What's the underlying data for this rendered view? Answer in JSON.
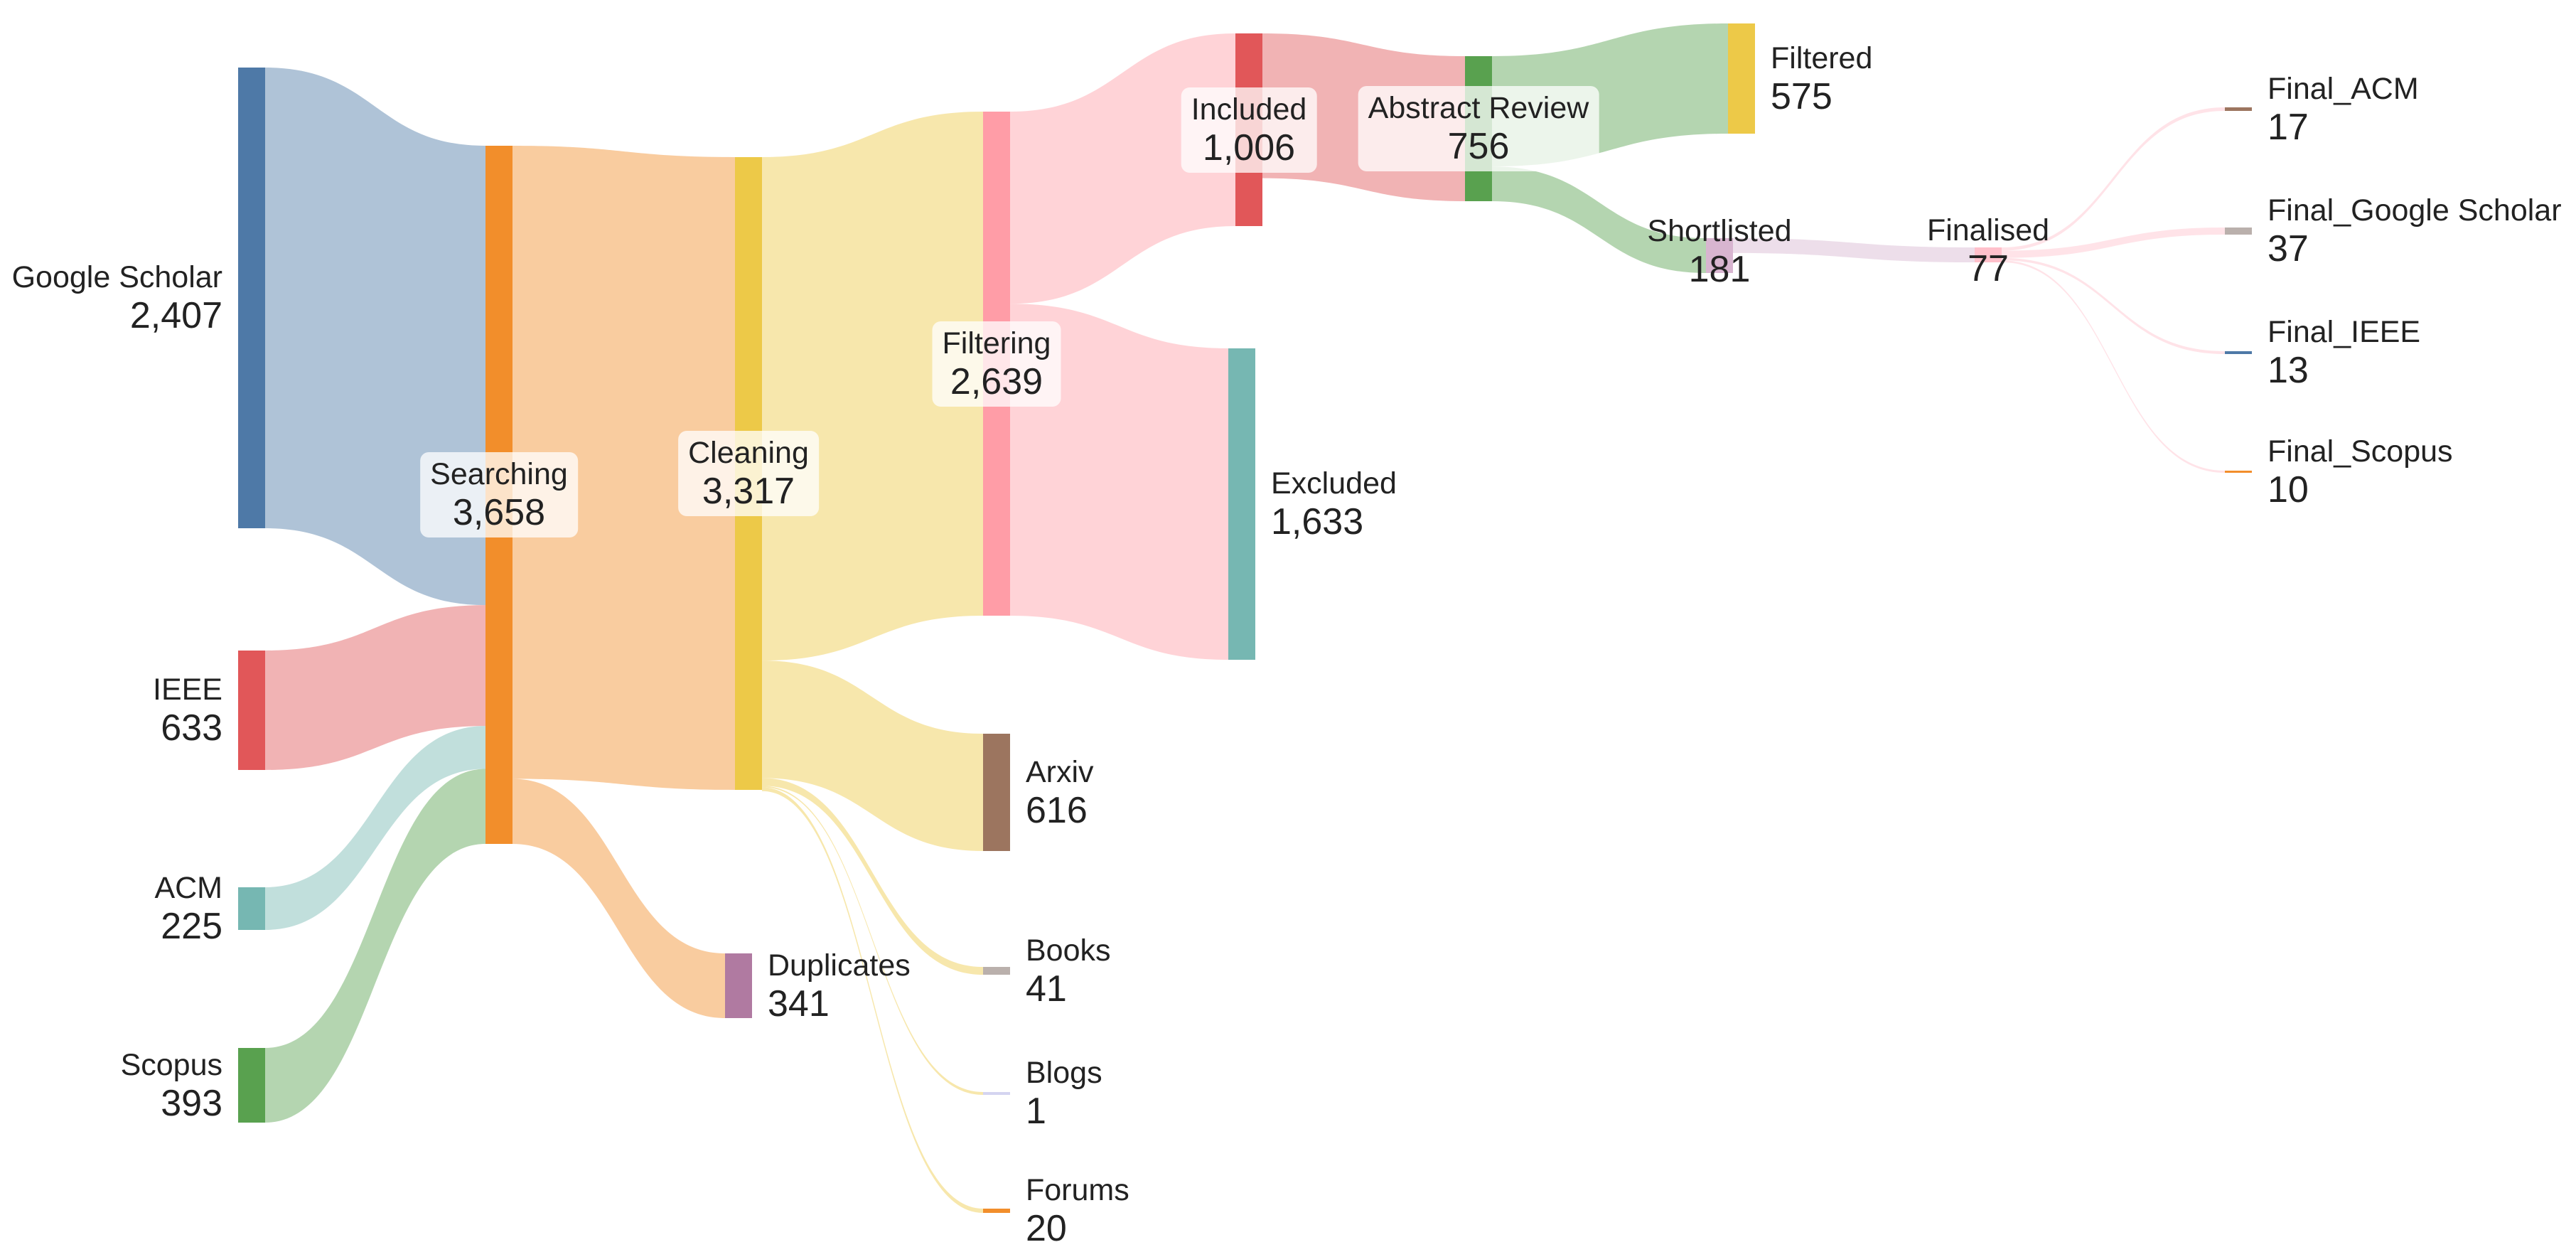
{
  "diagram": {
    "type": "sankey",
    "nodes": [
      {
        "id": "gs",
        "name": "Google Scholar",
        "count": "2,407",
        "value": 2407,
        "color": "#4e79a7"
      },
      {
        "id": "ieee",
        "name": "IEEE",
        "count": "633",
        "value": 633,
        "color": "#e15759"
      },
      {
        "id": "acm",
        "name": "ACM",
        "count": "225",
        "value": 225,
        "color": "#76b7b2"
      },
      {
        "id": "scopus",
        "name": "Scopus",
        "count": "393",
        "value": 393,
        "color": "#59a14f"
      },
      {
        "id": "searching",
        "name": "Searching",
        "count": "3,658",
        "value": 3658,
        "color": "#f28e2b"
      },
      {
        "id": "cleaning",
        "name": "Cleaning",
        "count": "3,317",
        "value": 3317,
        "color": "#edc948"
      },
      {
        "id": "duplicates",
        "name": "Duplicates",
        "count": "341",
        "value": 341,
        "color": "#b07aa1"
      },
      {
        "id": "filtering",
        "name": "Filtering",
        "count": "2,639",
        "value": 2639,
        "color": "#ff9da7"
      },
      {
        "id": "arxiv",
        "name": "Arxiv",
        "count": "616",
        "value": 616,
        "color": "#9c755f"
      },
      {
        "id": "books",
        "name": "Books",
        "count": "41",
        "value": 41,
        "color": "#bab0ac"
      },
      {
        "id": "blogs",
        "name": "Blogs",
        "count": "1",
        "value": 1,
        "color": "#d4d4f0"
      },
      {
        "id": "forums",
        "name": "Forums",
        "count": "20",
        "value": 20,
        "color": "#f28e2b"
      },
      {
        "id": "included",
        "name": "Included",
        "count": "1,006",
        "value": 1006,
        "color": "#e15759"
      },
      {
        "id": "excluded",
        "name": "Excluded",
        "count": "1,633",
        "value": 1633,
        "color": "#76b7b2"
      },
      {
        "id": "abstract",
        "name": "Abstract Review",
        "count": "756",
        "value": 756,
        "color": "#59a14f"
      },
      {
        "id": "filtered",
        "name": "Filtered",
        "count": "575",
        "value": 575,
        "color": "#edc948"
      },
      {
        "id": "shortlisted",
        "name": "Shortlisted",
        "count": "181",
        "value": 181,
        "color": "#d8b5d0"
      },
      {
        "id": "finalised",
        "name": "Finalised",
        "count": "77",
        "value": 77,
        "color": "#ffc0cb"
      },
      {
        "id": "final_acm",
        "name": "Final_ACM",
        "count": "17",
        "value": 17,
        "color": "#9c755f"
      },
      {
        "id": "final_gs",
        "name": "Final_Google Scholar",
        "count": "37",
        "value": 37,
        "color": "#bab0ac"
      },
      {
        "id": "final_ieee",
        "name": "Final_IEEE",
        "count": "13",
        "value": 13,
        "color": "#4e79a7"
      },
      {
        "id": "final_scopus",
        "name": "Final_Scopus",
        "count": "10",
        "value": 10,
        "color": "#f28e2b"
      }
    ],
    "links": [
      {
        "source": "gs",
        "target": "searching",
        "value": 2407
      },
      {
        "source": "ieee",
        "target": "searching",
        "value": 633
      },
      {
        "source": "acm",
        "target": "searching",
        "value": 225
      },
      {
        "source": "scopus",
        "target": "searching",
        "value": 393
      },
      {
        "source": "searching",
        "target": "cleaning",
        "value": 3317
      },
      {
        "source": "searching",
        "target": "duplicates",
        "value": 341
      },
      {
        "source": "cleaning",
        "target": "filtering",
        "value": 2639
      },
      {
        "source": "cleaning",
        "target": "arxiv",
        "value": 616
      },
      {
        "source": "cleaning",
        "target": "books",
        "value": 41
      },
      {
        "source": "cleaning",
        "target": "blogs",
        "value": 1
      },
      {
        "source": "cleaning",
        "target": "forums",
        "value": 20
      },
      {
        "source": "filtering",
        "target": "included",
        "value": 1006
      },
      {
        "source": "filtering",
        "target": "excluded",
        "value": 1633
      },
      {
        "source": "included",
        "target": "abstract",
        "value": 756
      },
      {
        "source": "abstract",
        "target": "filtered",
        "value": 575
      },
      {
        "source": "abstract",
        "target": "shortlisted",
        "value": 181
      },
      {
        "source": "shortlisted",
        "target": "finalised",
        "value": 77
      },
      {
        "source": "finalised",
        "target": "final_acm",
        "value": 17
      },
      {
        "source": "finalised",
        "target": "final_gs",
        "value": 37
      },
      {
        "source": "finalised",
        "target": "final_ieee",
        "value": 13
      },
      {
        "source": "finalised",
        "target": "final_scopus",
        "value": 10
      }
    ]
  }
}
